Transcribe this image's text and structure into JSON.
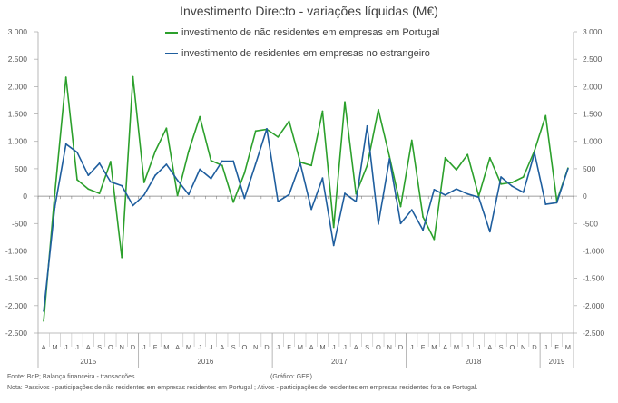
{
  "chart_data": {
    "type": "line",
    "title": "Investimento Directo - variações líquidas (M€)",
    "ylim": [
      -2500,
      3000
    ],
    "yticks": [
      3000,
      2500,
      2000,
      1500,
      1000,
      500,
      0,
      -500,
      -1000,
      -1500,
      -2000,
      -2500
    ],
    "ytick_labels": [
      "3.000",
      "2.500",
      "2.000",
      "1.500",
      "1.000",
      "500",
      "0",
      "-500",
      "-1.000",
      "-1.500",
      "-2.000",
      "-2.500"
    ],
    "month_labels": [
      "A",
      "M",
      "J",
      "J",
      "A",
      "S",
      "O",
      "N",
      "D",
      "J",
      "F",
      "M",
      "A",
      "M",
      "J",
      "J",
      "A",
      "S",
      "O",
      "N",
      "D",
      "J",
      "F",
      "M",
      "A",
      "M",
      "J",
      "J",
      "A",
      "S",
      "O",
      "N",
      "D",
      "J",
      "F",
      "M",
      "A",
      "M",
      "J",
      "J",
      "A",
      "S",
      "O",
      "N",
      "D",
      "J",
      "F",
      "M"
    ],
    "years": [
      {
        "label": "2015",
        "start": 0,
        "end": 9
      },
      {
        "label": "2016",
        "start": 9,
        "end": 21
      },
      {
        "label": "2017",
        "start": 21,
        "end": 33
      },
      {
        "label": "2018",
        "start": 33,
        "end": 45
      },
      {
        "label": "2019",
        "start": 45,
        "end": 48
      }
    ],
    "series": [
      {
        "name": "investimento de não residentes em empresas em Portugal",
        "color": "#2ca02c",
        "values": [
          -2280,
          50,
          2170,
          300,
          130,
          50,
          630,
          -1120,
          2180,
          250,
          820,
          1240,
          10,
          820,
          1450,
          650,
          560,
          -110,
          420,
          1190,
          1220,
          1080,
          1370,
          620,
          560,
          1550,
          -570,
          1720,
          40,
          560,
          1580,
          720,
          -190,
          1020,
          -380,
          -790,
          700,
          480,
          760,
          0,
          700,
          220,
          250,
          350,
          830,
          1470,
          -90,
          510
        ]
      },
      {
        "name": "investimento de residentes em empresas no estrangeiro",
        "color": "#1f5e9e",
        "values": [
          -2100,
          -200,
          950,
          800,
          380,
          600,
          260,
          190,
          -170,
          20,
          380,
          580,
          290,
          30,
          490,
          320,
          640,
          640,
          -40,
          590,
          1230,
          -100,
          30,
          600,
          -240,
          330,
          -900,
          50,
          -100,
          1280,
          -510,
          680,
          -500,
          -250,
          -620,
          120,
          20,
          130,
          40,
          -20,
          -650,
          350,
          180,
          70,
          790,
          -150,
          -120,
          500
        ]
      }
    ],
    "legend": {
      "position": "top-center"
    }
  },
  "footer": {
    "source": "Fonte: BdP; Balança financeira - transacções",
    "note": "Nota: Passivos - participações de não residentes em empresas residentes em Portugal ; Ativos - participações de residentes em empresas residentes fora de Portugal.",
    "credit": "(Gráfico: GEE)"
  }
}
